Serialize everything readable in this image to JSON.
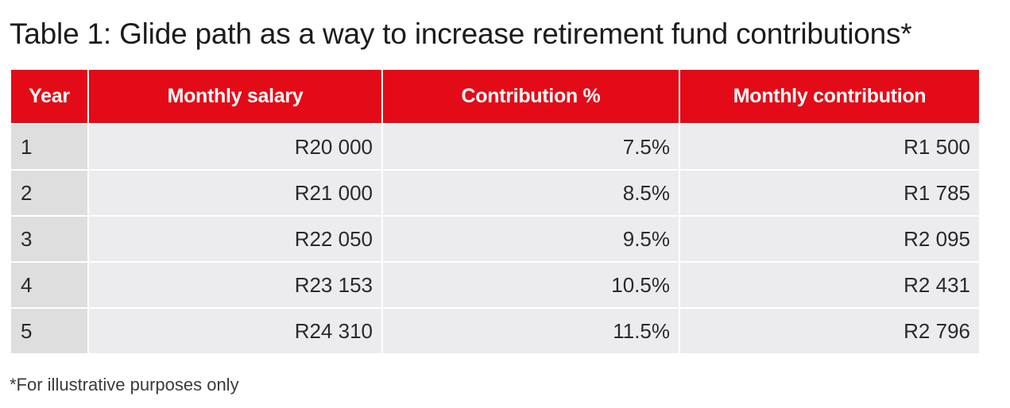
{
  "title": "Table 1: Glide path as a way to increase retirement fund contributions*",
  "table": {
    "headers": [
      "Year",
      "Monthly salary",
      "Contribution %",
      "Monthly contribution"
    ],
    "rows": [
      [
        "1",
        "R20 000",
        "7.5%",
        "R1 500"
      ],
      [
        "2",
        "R21 000",
        "8.5%",
        "R1 785"
      ],
      [
        "3",
        "R22 050",
        "9.5%",
        "R2 095"
      ],
      [
        "4",
        "R23 153",
        "10.5%",
        "R2 431"
      ],
      [
        "5",
        "R24 310",
        "11.5%",
        "R2 796"
      ]
    ]
  },
  "footnote": "*For illustrative purposes only",
  "colors": {
    "header_bg": "#e30b17",
    "header_text": "#ffffff",
    "cell_bg": "#ececee",
    "year_cell_bg": "#dededf"
  }
}
